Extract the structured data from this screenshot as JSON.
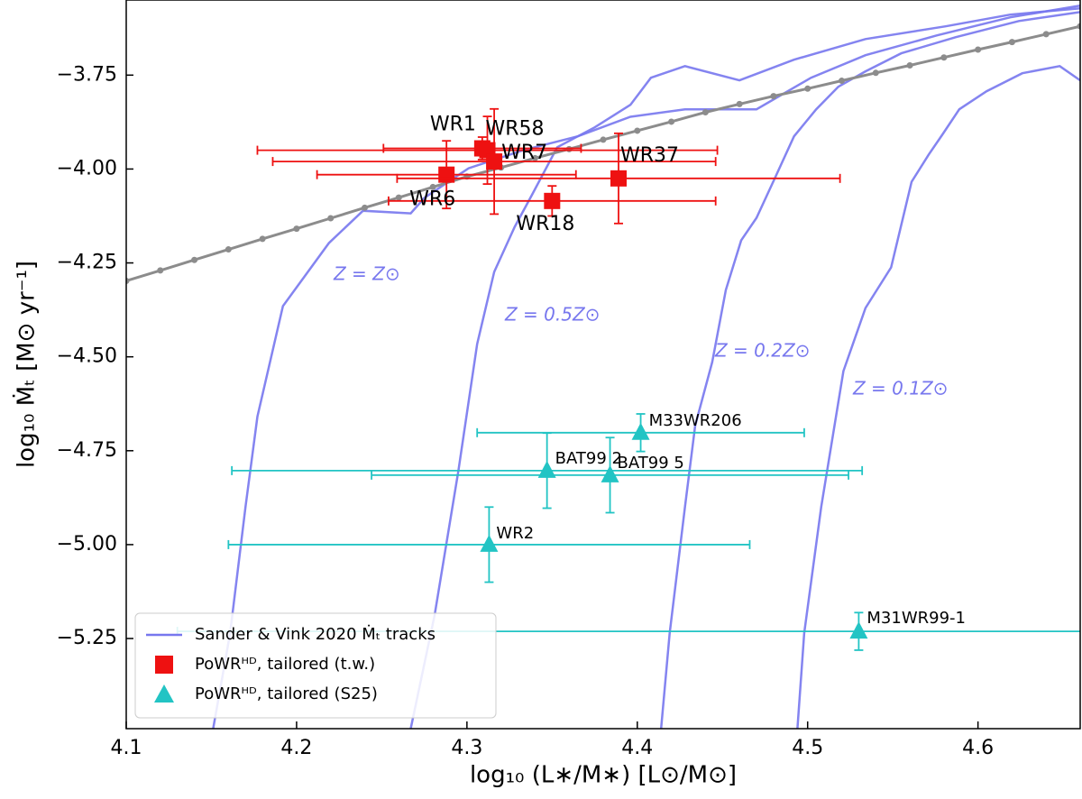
{
  "chart_data": {
    "type": "scatter",
    "xlabel": "log₁₀ (L∗/M∗)  [L⊙/M⊙]",
    "ylabel": "log₁₀ Ṁₜ  [M⊙ yr⁻¹]",
    "xlim": [
      4.1,
      4.66
    ],
    "ylim": [
      -5.49,
      -3.55
    ],
    "xticks": [
      4.1,
      4.2,
      4.3,
      4.4,
      4.5,
      4.6
    ],
    "yticks": [
      {
        "value": -3.75,
        "label": "−3.75"
      },
      {
        "value": -4.0,
        "label": "−4.00"
      },
      {
        "value": -4.25,
        "label": "−4.25"
      },
      {
        "value": -4.5,
        "label": "−4.50"
      },
      {
        "value": -4.75,
        "label": "−4.75"
      },
      {
        "value": -5.0,
        "label": "−5.00"
      },
      {
        "value": -5.25,
        "label": "−5.25"
      }
    ],
    "grid": false,
    "legend": "lower left",
    "tracks_label": "Sander & Vink 2020 Ṁₜ tracks",
    "tracks_color": "#7777ee",
    "series": [
      {
        "name": "Z = Z⊙",
        "type": "line",
        "color": "#7777ee",
        "x": [
          4.151,
          4.161,
          4.17,
          4.177,
          4.192,
          4.219,
          4.239,
          4.267,
          4.275,
          4.301,
          4.333,
          4.365,
          4.396,
          4.428,
          4.47,
          4.502,
          4.534,
          4.576,
          4.619,
          4.66
        ],
        "values": [
          -5.49,
          -5.236,
          -4.899,
          -4.659,
          -4.365,
          -4.197,
          -4.111,
          -4.118,
          -4.077,
          -3.998,
          -3.95,
          -3.913,
          -3.861,
          -3.841,
          -3.841,
          -3.757,
          -3.697,
          -3.644,
          -3.596,
          -3.565
        ]
      },
      {
        "name": "Z = 0.5Z⊙",
        "type": "line",
        "color": "#7777ee",
        "x": [
          4.267,
          4.281,
          4.295,
          4.306,
          4.316,
          4.328,
          4.338,
          4.353,
          4.375,
          4.396,
          4.408,
          4.428,
          4.46,
          4.492,
          4.534,
          4.581,
          4.619,
          4.66
        ],
        "values": [
          -5.49,
          -5.188,
          -4.803,
          -4.466,
          -4.274,
          -4.154,
          -4.07,
          -3.942,
          -3.889,
          -3.829,
          -3.757,
          -3.726,
          -3.764,
          -3.709,
          -3.654,
          -3.62,
          -3.589,
          -3.572
        ]
      },
      {
        "name": "Z = 0.2Z⊙",
        "type": "line",
        "color": "#7777ee",
        "x": [
          4.414,
          4.419,
          4.428,
          4.434,
          4.444,
          4.452,
          4.461,
          4.47,
          4.481,
          4.492,
          4.505,
          4.518,
          4.534,
          4.555,
          4.587,
          4.624,
          4.66
        ],
        "values": [
          -5.49,
          -5.236,
          -4.899,
          -4.683,
          -4.514,
          -4.322,
          -4.19,
          -4.13,
          -4.022,
          -3.913,
          -3.841,
          -3.781,
          -3.74,
          -3.692,
          -3.649,
          -3.606,
          -3.582
        ]
      },
      {
        "name": "Z = 0.1Z⊙",
        "type": "line",
        "color": "#7777ee",
        "x": [
          4.494,
          4.498,
          4.508,
          4.521,
          4.534,
          4.549,
          4.561,
          4.571,
          4.579,
          4.589,
          4.605,
          4.626,
          4.648,
          4.66
        ],
        "values": [
          -5.49,
          -5.236,
          -4.899,
          -4.538,
          -4.37,
          -4.262,
          -4.034,
          -3.962,
          -3.909,
          -3.841,
          -3.793,
          -3.745,
          -3.726,
          -3.764
        ]
      },
      {
        "type": "line",
        "color": "#8c8c8c",
        "markers": true,
        "x": [
          4.1,
          4.12,
          4.14,
          4.16,
          4.18,
          4.2,
          4.22,
          4.24,
          4.26,
          4.28,
          4.3,
          4.32,
          4.34,
          4.36,
          4.38,
          4.4,
          4.42,
          4.44,
          4.46,
          4.48,
          4.5,
          4.52,
          4.54,
          4.56,
          4.58,
          4.6,
          4.62,
          4.64,
          4.66
        ],
        "values": [
          -4.298,
          -4.27,
          -4.242,
          -4.214,
          -4.186,
          -4.159,
          -4.131,
          -4.103,
          -4.076,
          -4.048,
          -4.02,
          -3.996,
          -3.971,
          -3.947,
          -3.922,
          -3.898,
          -3.874,
          -3.849,
          -3.827,
          -3.806,
          -3.786,
          -3.765,
          -3.744,
          -3.724,
          -3.703,
          -3.682,
          -3.662,
          -3.641,
          -3.62
        ]
      },
      {
        "name": "PoWRᴴᴰ, tailored (t.w.)",
        "type": "scatter",
        "marker": "square",
        "color": "#ee1111",
        "labels": [
          "WR1",
          "WR58",
          "WR7",
          "WR6",
          "WR37",
          "WR18"
        ],
        "x": [
          4.309,
          4.312,
          4.316,
          4.288,
          4.389,
          4.35
        ],
        "values": [
          -3.945,
          -3.95,
          -3.98,
          -4.015,
          -4.025,
          -4.085
        ],
        "xerr": [
          0.058,
          0.135,
          0.13,
          0.076,
          0.13,
          0.096
        ],
        "yerr": [
          0.03,
          0.09,
          0.14,
          0.09,
          0.12,
          0.04
        ]
      },
      {
        "name": "PoWRᴴᴰ, tailored (S25)",
        "type": "scatter",
        "marker": "triangle",
        "color": "#22c4c4",
        "labels": [
          "M33WR206",
          "BAT99 2",
          "BAT99 5",
          "WR2",
          "M31WR99-1"
        ],
        "x": [
          4.402,
          4.347,
          4.384,
          4.313,
          4.53
        ],
        "values": [
          -4.702,
          -4.803,
          -4.815,
          -5.0,
          -5.231
        ],
        "xerr": [
          0.096,
          0.185,
          0.14,
          0.153,
          0.4
        ],
        "yerr": [
          0.05,
          0.1,
          0.1,
          0.1,
          0.05
        ]
      }
    ]
  }
}
